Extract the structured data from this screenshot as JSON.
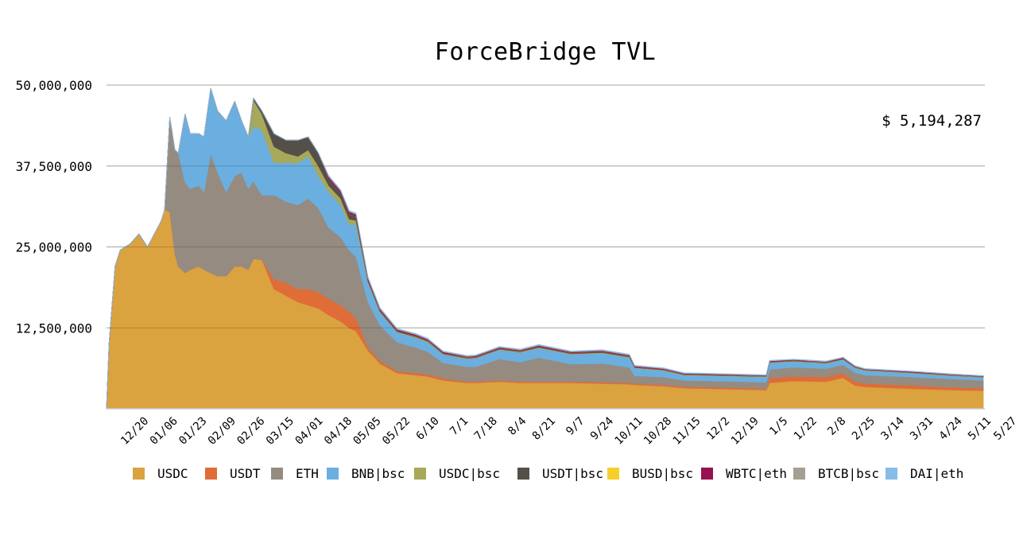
{
  "chart_data": {
    "type": "area",
    "stacked": true,
    "title": "ForceBridge TVL",
    "annotation": "$ 5,194,287",
    "xlabel": "",
    "ylabel": "",
    "ylim": [
      0,
      50000000
    ],
    "grid": true,
    "legend_position": "bottom",
    "y_ticks": [
      {
        "value": 12500000,
        "label": "12,500,000"
      },
      {
        "value": 25000000,
        "label": "25,000,000"
      },
      {
        "value": 37500000,
        "label": "37,500,000"
      },
      {
        "value": 50000000,
        "label": "50,000,000"
      }
    ],
    "x_unit": "days since start",
    "x_range": [
      0,
      513
    ],
    "x_ticks": [
      {
        "day": 23,
        "label": "12/20"
      },
      {
        "day": 40,
        "label": "01/06"
      },
      {
        "day": 57,
        "label": "01/23"
      },
      {
        "day": 74,
        "label": "02/09"
      },
      {
        "day": 91,
        "label": "02/26"
      },
      {
        "day": 108,
        "label": "03/15"
      },
      {
        "day": 125,
        "label": "04/01"
      },
      {
        "day": 142,
        "label": "04/18"
      },
      {
        "day": 159,
        "label": "05/05"
      },
      {
        "day": 176,
        "label": "05/22"
      },
      {
        "day": 193,
        "label": "6/10"
      },
      {
        "day": 210,
        "label": "7/1"
      },
      {
        "day": 227,
        "label": "7/18"
      },
      {
        "day": 244,
        "label": "8/4"
      },
      {
        "day": 261,
        "label": "8/21"
      },
      {
        "day": 278,
        "label": "9/7"
      },
      {
        "day": 295,
        "label": "9/24"
      },
      {
        "day": 312,
        "label": "10/11"
      },
      {
        "day": 329,
        "label": "10/28"
      },
      {
        "day": 346,
        "label": "11/15"
      },
      {
        "day": 363,
        "label": "12/2"
      },
      {
        "day": 380,
        "label": "12/19"
      },
      {
        "day": 397,
        "label": "1/5"
      },
      {
        "day": 414,
        "label": "1/22"
      },
      {
        "day": 431,
        "label": "2/8"
      },
      {
        "day": 448,
        "label": "2/25"
      },
      {
        "day": 465,
        "label": "3/14"
      },
      {
        "day": 482,
        "label": "3/31"
      },
      {
        "day": 499,
        "label": "4/24"
      },
      {
        "day": 516,
        "label": "5/11"
      },
      {
        "day": 531,
        "label": "5/27"
      }
    ],
    "x": [
      0,
      1.5,
      5,
      8,
      14,
      19,
      24,
      28,
      32,
      34,
      37,
      40,
      42,
      46,
      49,
      54,
      57,
      61,
      65,
      70,
      75,
      79,
      83,
      86,
      91,
      98,
      105,
      112,
      118,
      124,
      130,
      137,
      142,
      146,
      153,
      160,
      170,
      181,
      188,
      197,
      211,
      216,
      230,
      242,
      253,
      272,
      290,
      306,
      309,
      326,
      338,
      356,
      386,
      388,
      402,
      421,
      431,
      438,
      444,
      472,
      495,
      513
    ],
    "series": [
      {
        "name": "USDC",
        "color": "#dba240",
        "values": [
          0,
          10000000,
          22000000,
          24500000,
          25500000,
          27000000,
          25000000,
          27000000,
          29000000,
          30700000,
          30500000,
          24000000,
          22000000,
          21000000,
          21500000,
          22000000,
          21500000,
          21000000,
          20500000,
          20500000,
          22000000,
          22000000,
          21500000,
          23200000,
          23000000,
          18500000,
          17500000,
          16500000,
          16000000,
          15500000,
          14500000,
          13500000,
          12500000,
          12000000,
          9000000,
          7000000,
          5500000,
          5200000,
          5000000,
          4400000,
          4000000,
          4000000,
          4200000,
          4000000,
          4000000,
          4000000,
          3900000,
          3800000,
          3700000,
          3500000,
          3200000,
          3100000,
          2900000,
          4000000,
          4300000,
          4200000,
          4800000,
          3600000,
          3400000,
          3100000,
          2900000,
          2800000
        ]
      },
      {
        "name": "USDT",
        "color": "#e06c37",
        "values": [
          0,
          0,
          0,
          0,
          0,
          0,
          0,
          0,
          0,
          0,
          0,
          0,
          0,
          0,
          0,
          0,
          0,
          0,
          0,
          0,
          0,
          0,
          0,
          0,
          0,
          1500000,
          2000000,
          2000000,
          2500000,
          2500000,
          2500000,
          2500000,
          2500000,
          2000000,
          500000,
          400000,
          300000,
          300000,
          300000,
          300000,
          200000,
          200000,
          200000,
          200000,
          200000,
          200000,
          200000,
          200000,
          200000,
          200000,
          200000,
          200000,
          200000,
          700000,
          700000,
          700000,
          700000,
          600000,
          500000,
          500000,
          400000,
          350000
        ]
      },
      {
        "name": "ETH",
        "color": "#968b80",
        "values": [
          0,
          0,
          0,
          0,
          0,
          0,
          0,
          0,
          0,
          0,
          14500000,
          16000000,
          17500000,
          14000000,
          12500000,
          12500000,
          12000000,
          18500000,
          16000000,
          13000000,
          14000000,
          14500000,
          12500000,
          12000000,
          10000000,
          13000000,
          12500000,
          13000000,
          14000000,
          13000000,
          11000000,
          10500000,
          9500000,
          9500000,
          7000000,
          5500000,
          4500000,
          4000000,
          3500000,
          2400000,
          2300000,
          2300000,
          3300000,
          3000000,
          3700000,
          2700000,
          2900000,
          2400000,
          1200000,
          1200000,
          1000000,
          1000000,
          1000000,
          1400000,
          1400000,
          1300000,
          1300000,
          1400000,
          1300000,
          1300000,
          1300000,
          1250000
        ]
      },
      {
        "name": "BNB|bsc",
        "color": "#6aafdf",
        "values": [
          0,
          0,
          0,
          0,
          0,
          0,
          0,
          0,
          0,
          0,
          0,
          0,
          0,
          10500000,
          8500000,
          8000000,
          8500000,
          10000000,
          9500000,
          11000000,
          11500000,
          8000000,
          8000000,
          8500000,
          10000000,
          5000000,
          6000000,
          6500000,
          6500000,
          5000000,
          5500000,
          5000000,
          4000000,
          5000000,
          3000000,
          2000000,
          1500000,
          1500000,
          1500000,
          1300000,
          1200000,
          1300000,
          1400000,
          1500000,
          1500000,
          1500000,
          1600000,
          1500000,
          1200000,
          1000000,
          800000,
          800000,
          800000,
          1000000,
          900000,
          800000,
          800000,
          700000,
          700000,
          600000,
          500000,
          450000
        ]
      },
      {
        "name": "USDC|bsc",
        "color": "#a8a85a",
        "values": [
          0,
          0,
          0,
          0,
          0,
          0,
          0,
          0,
          0,
          0,
          0,
          0,
          0,
          0,
          0,
          0,
          0,
          0,
          0,
          0,
          0,
          0,
          0,
          4000000,
          2500000,
          2500000,
          1500000,
          1000000,
          1000000,
          1500000,
          1000000,
          1000000,
          800000,
          600000,
          200000,
          150000,
          120000,
          120000,
          120000,
          100000,
          100000,
          100000,
          100000,
          100000,
          100000,
          100000,
          100000,
          100000,
          80000,
          80000,
          70000,
          70000,
          70000,
          80000,
          80000,
          80000,
          80000,
          70000,
          60000,
          60000,
          50000,
          50000
        ]
      },
      {
        "name": "USDT|bsc",
        "color": "#545049",
        "values": [
          0,
          0,
          0,
          0,
          0,
          0,
          0,
          0,
          0,
          0,
          0,
          0,
          0,
          0,
          0,
          0,
          0,
          0,
          0,
          0,
          0,
          0,
          0,
          300000,
          500000,
          2000000,
          2000000,
          2500000,
          2000000,
          2000000,
          1000000,
          800000,
          800000,
          600000,
          200000,
          150000,
          120000,
          120000,
          100000,
          100000,
          90000,
          90000,
          90000,
          90000,
          90000,
          90000,
          90000,
          90000,
          70000,
          70000,
          60000,
          60000,
          60000,
          70000,
          70000,
          70000,
          70000,
          60000,
          50000,
          50000,
          50000,
          40000
        ]
      },
      {
        "name": "BUSD|bsc",
        "color": "#f5d02b",
        "values": [
          0,
          0,
          0,
          0,
          0,
          0,
          0,
          0,
          0,
          0,
          0,
          0,
          0,
          0,
          0,
          0,
          0,
          0,
          0,
          0,
          0,
          0,
          0,
          0,
          0,
          0,
          0,
          0,
          0,
          0,
          30000,
          30000,
          30000,
          30000,
          30000,
          30000,
          30000,
          30000,
          30000,
          30000,
          30000,
          30000,
          30000,
          30000,
          30000,
          30000,
          30000,
          30000,
          20000,
          20000,
          20000,
          20000,
          20000,
          20000,
          20000,
          20000,
          20000,
          20000,
          20000,
          20000,
          20000,
          20000
        ]
      },
      {
        "name": "WBTC|eth",
        "color": "#971050",
        "values": [
          0,
          0,
          0,
          0,
          0,
          0,
          0,
          0,
          0,
          0,
          0,
          0,
          0,
          0,
          0,
          0,
          0,
          0,
          0,
          0,
          0,
          0,
          0,
          0,
          0,
          0,
          0,
          0,
          0,
          0,
          300000,
          300000,
          300000,
          300000,
          250000,
          200000,
          180000,
          180000,
          170000,
          150000,
          150000,
          150000,
          150000,
          150000,
          150000,
          150000,
          150000,
          150000,
          120000,
          120000,
          100000,
          100000,
          100000,
          100000,
          100000,
          100000,
          100000,
          100000,
          90000,
          90000,
          90000,
          80000
        ]
      },
      {
        "name": "BTCB|bsc",
        "color": "#a79e93",
        "values": [
          0,
          0,
          0,
          0,
          0,
          0,
          0,
          0,
          0,
          0,
          0,
          0,
          0,
          0,
          0,
          0,
          0,
          0,
          0,
          0,
          0,
          0,
          0,
          0,
          0,
          0,
          0,
          0,
          0,
          0,
          100000,
          100000,
          100000,
          100000,
          100000,
          100000,
          80000,
          80000,
          80000,
          70000,
          70000,
          70000,
          70000,
          70000,
          70000,
          70000,
          70000,
          70000,
          60000,
          60000,
          50000,
          50000,
          50000,
          50000,
          50000,
          50000,
          50000,
          50000,
          40000,
          40000,
          40000,
          40000
        ]
      },
      {
        "name": "DAI|eth",
        "color": "#86bde6",
        "values": [
          0,
          0,
          0,
          0,
          0,
          0,
          0,
          0,
          0,
          0,
          0,
          0,
          0,
          0,
          0,
          0,
          0,
          0,
          0,
          0,
          0,
          0,
          0,
          0,
          0,
          0,
          0,
          0,
          0,
          0,
          100000,
          100000,
          100000,
          100000,
          100000,
          100000,
          80000,
          80000,
          80000,
          70000,
          70000,
          70000,
          70000,
          70000,
          70000,
          70000,
          70000,
          70000,
          60000,
          60000,
          50000,
          50000,
          50000,
          50000,
          50000,
          50000,
          50000,
          50000,
          40000,
          40000,
          40000,
          40000
        ]
      }
    ]
  }
}
